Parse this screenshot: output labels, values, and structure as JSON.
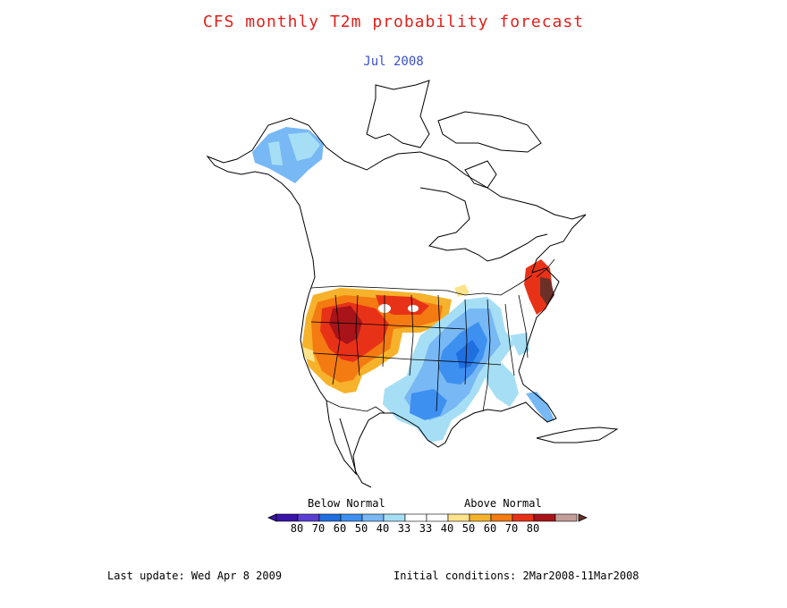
{
  "title": "CFS monthly T2m probability forecast",
  "subtitle": "Jul 2008",
  "legend": {
    "below_label": "Below Normal",
    "above_label": "Above Normal",
    "below_colors": [
      "#3a13a8",
      "#5a3fd2",
      "#1f6fe0",
      "#3d8ff0",
      "#78b8f5",
      "#a6dff5"
    ],
    "above_colors": [
      "#fde38a",
      "#f6b22a",
      "#f47a12",
      "#e83218",
      "#a8141a",
      "#c49e98",
      "#6a3028"
    ],
    "below_ticks": [
      "80",
      "70",
      "60",
      "50",
      "40",
      "33"
    ],
    "above_ticks": [
      "33",
      "40",
      "50",
      "60",
      "70",
      "80"
    ]
  },
  "footer": {
    "last_update": "Last update: Wed Apr 8 2009",
    "initial_conditions": "Initial conditions: 2Mar2008-11Mar2008"
  }
}
